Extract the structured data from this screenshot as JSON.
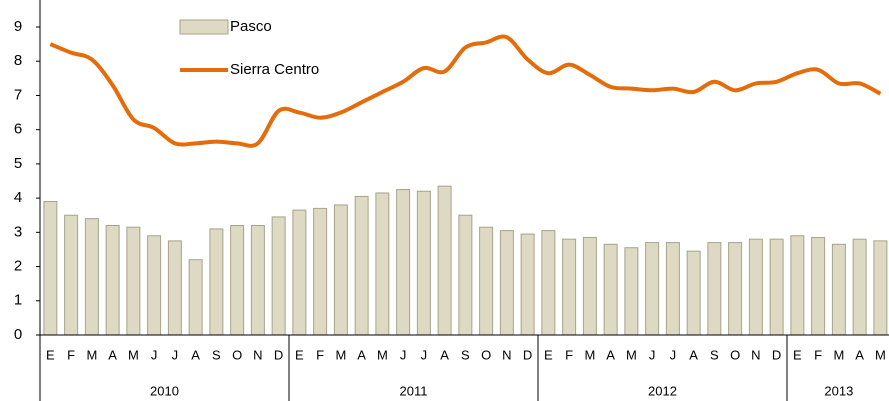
{
  "chart_data": {
    "type": "bar_line",
    "categories": [
      "E",
      "F",
      "M",
      "A",
      "M",
      "J",
      "J",
      "A",
      "S",
      "O",
      "N",
      "D",
      "E",
      "F",
      "M",
      "A",
      "M",
      "J",
      "J",
      "A",
      "S",
      "O",
      "N",
      "D",
      "E",
      "F",
      "M",
      "A",
      "M",
      "J",
      "J",
      "A",
      "S",
      "O",
      "N",
      "D",
      "E",
      "F",
      "M",
      "A",
      "M"
    ],
    "year_labels": [
      "2010",
      "2011",
      "2012",
      "2013"
    ],
    "series": [
      {
        "name": "Pasco",
        "type": "bar",
        "color": "#ddd9c3",
        "edge_color": "#a6a28c",
        "values": [
          3.9,
          3.5,
          3.4,
          3.2,
          3.15,
          2.9,
          2.75,
          2.2,
          3.1,
          3.2,
          3.2,
          3.45,
          3.65,
          3.7,
          3.8,
          4.05,
          4.15,
          4.25,
          4.2,
          4.35,
          3.5,
          3.15,
          3.05,
          2.95,
          3.05,
          2.8,
          2.85,
          2.65,
          2.55,
          2.7,
          2.7,
          2.45,
          2.7,
          2.7,
          2.8,
          2.8,
          2.9,
          2.85,
          2.65,
          2.8,
          2.75
        ]
      },
      {
        "name": "Sierra Centro",
        "type": "line",
        "color": "#e46c0a",
        "values": [
          8.5,
          8.25,
          8.05,
          7.3,
          6.3,
          6.05,
          5.6,
          5.6,
          5.65,
          5.6,
          5.6,
          6.55,
          6.5,
          6.35,
          6.5,
          6.8,
          7.1,
          7.4,
          7.8,
          7.7,
          8.4,
          8.55,
          8.7,
          8.05,
          7.65,
          7.9,
          7.6,
          7.25,
          7.2,
          7.15,
          7.2,
          7.1,
          7.4,
          7.15,
          7.35,
          7.4,
          7.65,
          7.75,
          7.35,
          7.35,
          7.05
        ]
      }
    ],
    "ylim": [
      0,
      9
    ],
    "yticks": [
      0,
      1,
      2,
      3,
      4,
      5,
      6,
      7,
      8,
      9
    ],
    "grid": false,
    "legend": "top-left"
  }
}
